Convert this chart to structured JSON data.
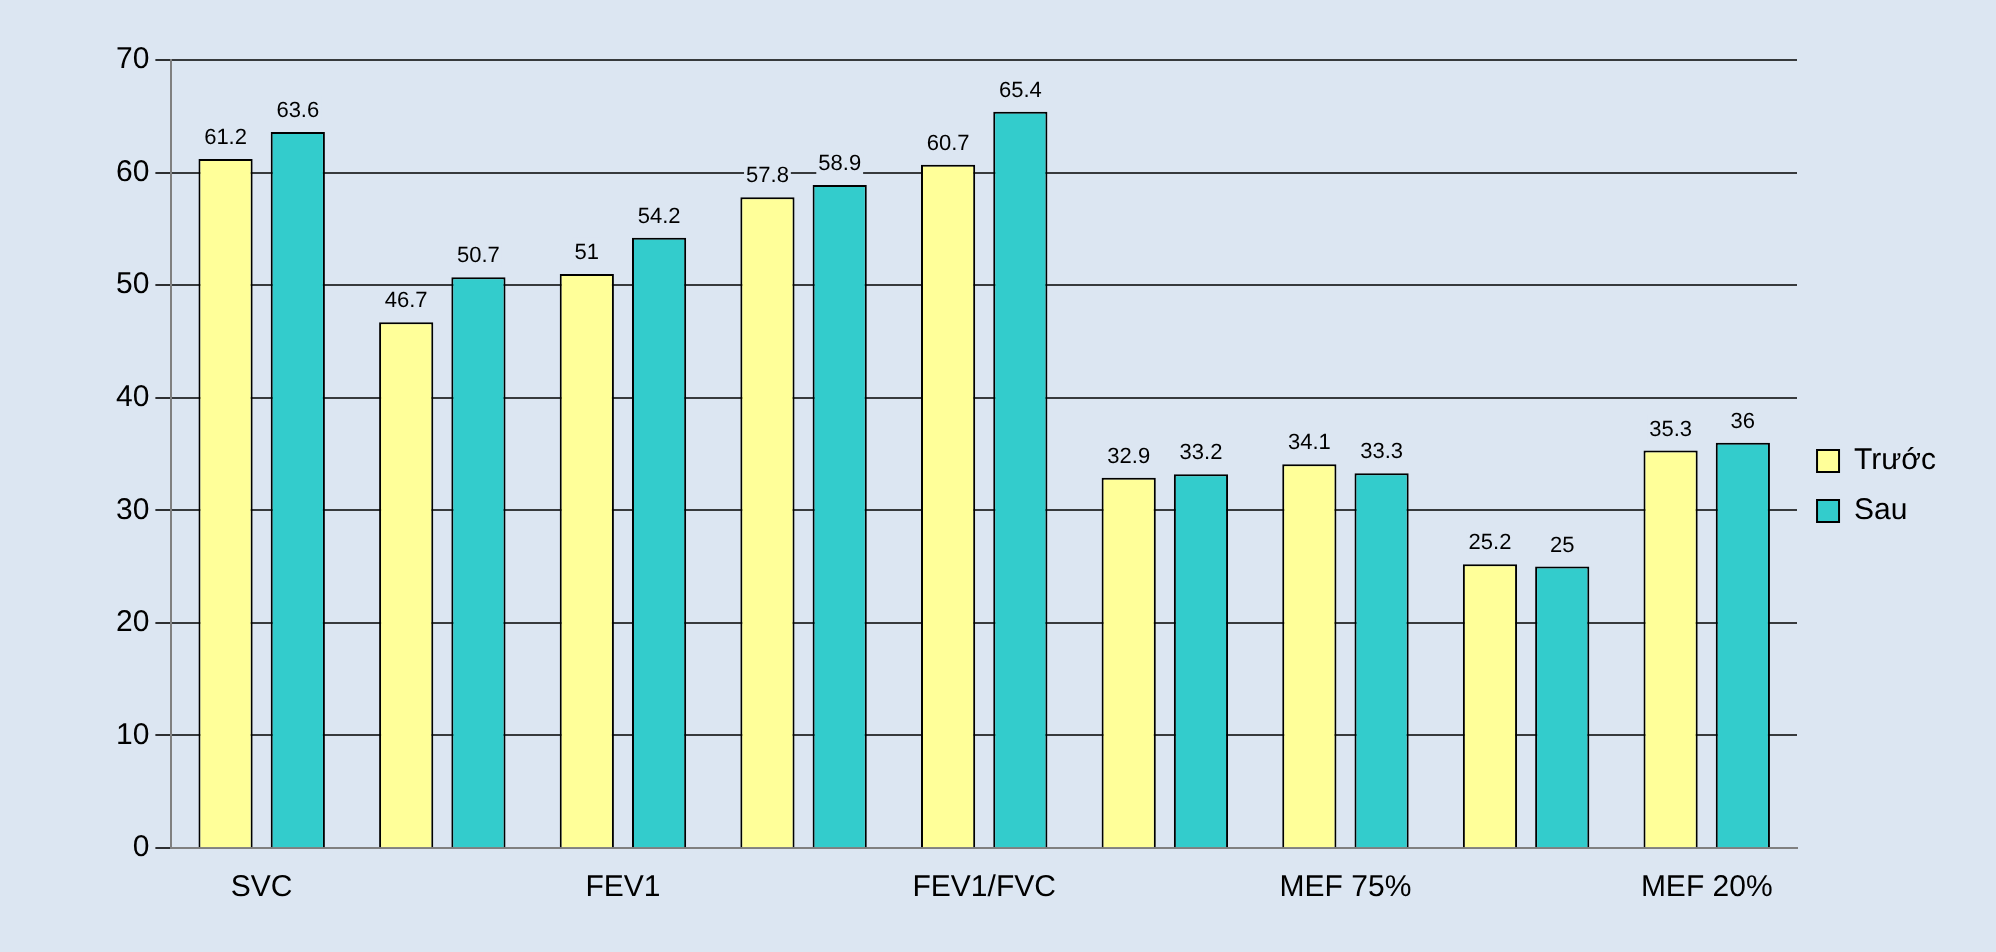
{
  "chart_data": {
    "type": "bar",
    "categories": [
      "SVC",
      null,
      "FEV1",
      null,
      "FEV1/FVC",
      null,
      "MEF 75%",
      null,
      "MEF 20%"
    ],
    "series": [
      {
        "name": "Trước",
        "color": "#ffff99",
        "values": [
          61.2,
          46.7,
          51,
          57.8,
          60.7,
          32.9,
          34.1,
          25.2,
          35.3
        ]
      },
      {
        "name": "Sau",
        "color": "#33cccc",
        "values": [
          63.6,
          50.7,
          54.2,
          58.9,
          65.4,
          33.2,
          33.3,
          25,
          36
        ]
      }
    ],
    "ylim": [
      0,
      70
    ],
    "yticks": [
      0,
      10,
      20,
      30,
      40,
      50,
      60,
      70
    ],
    "grid": "y",
    "legend": "right",
    "data_labels": true
  }
}
